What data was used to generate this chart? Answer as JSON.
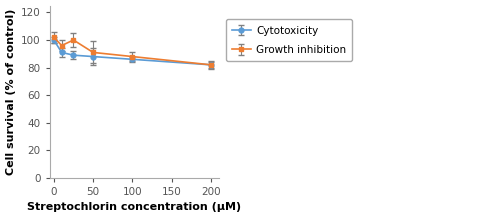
{
  "x": [
    0,
    10,
    25,
    50,
    100,
    200
  ],
  "cytotoxicity_y": [
    100,
    91,
    89,
    88,
    86,
    82
  ],
  "cytotoxicity_yerr": [
    2,
    3,
    3,
    6,
    2,
    2
  ],
  "growth_inhibition_y": [
    102,
    96,
    100,
    91,
    88,
    82
  ],
  "growth_inhibition_yerr": [
    4,
    4,
    5,
    8,
    3,
    3
  ],
  "cyto_color": "#5B9BD5",
  "growth_color": "#ED7D31",
  "xlabel": "Streptochlorin concentration (μM)",
  "ylabel": "Cell survival (% of control)",
  "xlim": [
    -5,
    210
  ],
  "ylim": [
    0,
    125
  ],
  "yticks": [
    0,
    20,
    40,
    60,
    80,
    100,
    120
  ],
  "xticks": [
    0,
    50,
    100,
    150,
    200
  ],
  "legend_cytotoxicity": "Cytotoxicity",
  "legend_growth": "Growth inhibition",
  "figwidth": 5.0,
  "figheight": 2.18,
  "dpi": 100
}
